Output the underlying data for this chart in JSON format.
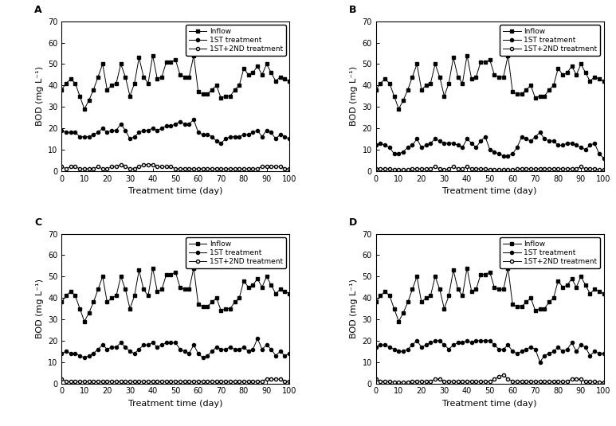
{
  "panels": [
    "A",
    "B",
    "C",
    "D"
  ],
  "x": [
    0,
    2,
    4,
    6,
    8,
    10,
    12,
    14,
    16,
    18,
    20,
    22,
    24,
    26,
    28,
    30,
    32,
    34,
    36,
    38,
    40,
    42,
    44,
    46,
    48,
    50,
    52,
    54,
    56,
    58,
    60,
    62,
    64,
    66,
    68,
    70,
    72,
    74,
    76,
    78,
    80,
    82,
    84,
    86,
    88,
    90,
    92,
    94,
    96,
    98,
    100
  ],
  "inflow": [
    38,
    41,
    43,
    41,
    35,
    29,
    33,
    38,
    44,
    50,
    38,
    40,
    41,
    50,
    44,
    35,
    41,
    53,
    44,
    41,
    54,
    43,
    44,
    51,
    51,
    52,
    45,
    44,
    44,
    54,
    37,
    36,
    36,
    38,
    40,
    34,
    35,
    35,
    38,
    40,
    48,
    45,
    46,
    49,
    45,
    50,
    46,
    42,
    44,
    43,
    42
  ],
  "first_A": [
    19,
    18,
    18,
    18,
    16,
    16,
    16,
    17,
    18,
    20,
    18,
    19,
    19,
    22,
    19,
    15,
    16,
    18,
    19,
    19,
    20,
    19,
    20,
    21,
    21,
    22,
    23,
    22,
    22,
    24,
    18,
    17,
    17,
    16,
    14,
    13,
    15,
    16,
    16,
    16,
    17,
    17,
    18,
    19,
    16,
    19,
    18,
    15,
    17,
    16,
    15
  ],
  "second_A": [
    2,
    1,
    2,
    2,
    1,
    1,
    1,
    1,
    2,
    1,
    1,
    2,
    2,
    3,
    2,
    1,
    1,
    2,
    3,
    3,
    3,
    2,
    2,
    2,
    2,
    1,
    1,
    1,
    1,
    1,
    1,
    1,
    1,
    1,
    1,
    1,
    1,
    1,
    1,
    1,
    1,
    1,
    1,
    1,
    2,
    2,
    2,
    2,
    2,
    1,
    1
  ],
  "first_B": [
    12,
    13,
    12,
    11,
    8,
    8,
    9,
    11,
    12,
    15,
    11,
    12,
    13,
    15,
    14,
    13,
    13,
    13,
    12,
    11,
    15,
    13,
    11,
    14,
    16,
    10,
    9,
    8,
    7,
    7,
    8,
    11,
    16,
    15,
    14,
    16,
    18,
    15,
    14,
    14,
    12,
    12,
    13,
    13,
    12,
    11,
    10,
    12,
    13,
    8,
    6
  ],
  "second_B": [
    1,
    1,
    1,
    1,
    0.5,
    0.5,
    0.5,
    0.5,
    1,
    1,
    1,
    1,
    1,
    2,
    1,
    0.5,
    1,
    2,
    1,
    1,
    2,
    1,
    1,
    1,
    1,
    0.5,
    0.5,
    0.5,
    0.5,
    0.5,
    0.5,
    1,
    1,
    1,
    1,
    1,
    1,
    1,
    1,
    1,
    1,
    1,
    1,
    1,
    1,
    2,
    1,
    1,
    1,
    0.5,
    0.5
  ],
  "first_C": [
    14,
    15,
    14,
    14,
    13,
    12,
    13,
    14,
    16,
    18,
    16,
    17,
    17,
    19,
    17,
    15,
    14,
    16,
    18,
    18,
    19,
    17,
    18,
    19,
    19,
    19,
    16,
    15,
    14,
    18,
    14,
    12,
    13,
    15,
    17,
    16,
    16,
    17,
    16,
    16,
    17,
    15,
    16,
    21,
    16,
    18,
    16,
    13,
    15,
    13,
    14
  ],
  "second_C": [
    2,
    1,
    1,
    1,
    1,
    1,
    1,
    1,
    1,
    1,
    1,
    1,
    1,
    1,
    1,
    1,
    1,
    1,
    1,
    1,
    1,
    1,
    1,
    1,
    1,
    1,
    1,
    1,
    1,
    1,
    1,
    1,
    1,
    1,
    1,
    1,
    1,
    1,
    1,
    1,
    1,
    1,
    1,
    1,
    1,
    2,
    2,
    2,
    2,
    1,
    1
  ],
  "first_D": [
    17,
    18,
    18,
    17,
    16,
    15,
    15,
    16,
    18,
    20,
    17,
    18,
    19,
    20,
    20,
    18,
    16,
    18,
    19,
    19,
    20,
    19,
    20,
    20,
    20,
    20,
    18,
    16,
    16,
    18,
    15,
    14,
    15,
    16,
    17,
    16,
    10,
    13,
    14,
    15,
    17,
    15,
    16,
    19,
    15,
    18,
    17,
    13,
    15,
    14,
    14
  ],
  "second_D": [
    2,
    1,
    1,
    1,
    0.5,
    0.5,
    0.5,
    0.5,
    1,
    1,
    1,
    1,
    1,
    2,
    2,
    1,
    1,
    1,
    1,
    1,
    1,
    1,
    1,
    1,
    1,
    1,
    2,
    3,
    4,
    2,
    1,
    1,
    1,
    1,
    1,
    1,
    1,
    1,
    1,
    1,
    1,
    1,
    1,
    2,
    2,
    2,
    1,
    1,
    1,
    0.5,
    0.5
  ],
  "ylim": [
    0,
    70
  ],
  "yticks": [
    0,
    10,
    20,
    30,
    40,
    50,
    60,
    70
  ],
  "xlim": [
    0,
    100
  ],
  "xticks": [
    0,
    10,
    20,
    30,
    40,
    50,
    60,
    70,
    80,
    90,
    100
  ],
  "xlabel": "Treatment time (day)",
  "ylabel": "BOD (mg L⁻¹)",
  "legend_labels": [
    "Inflow",
    "1ST treatment",
    "1ST+2ND treatment"
  ],
  "line_color": "#000000",
  "markersize_inflow": 3,
  "markersize_first": 3,
  "markersize_second": 3
}
